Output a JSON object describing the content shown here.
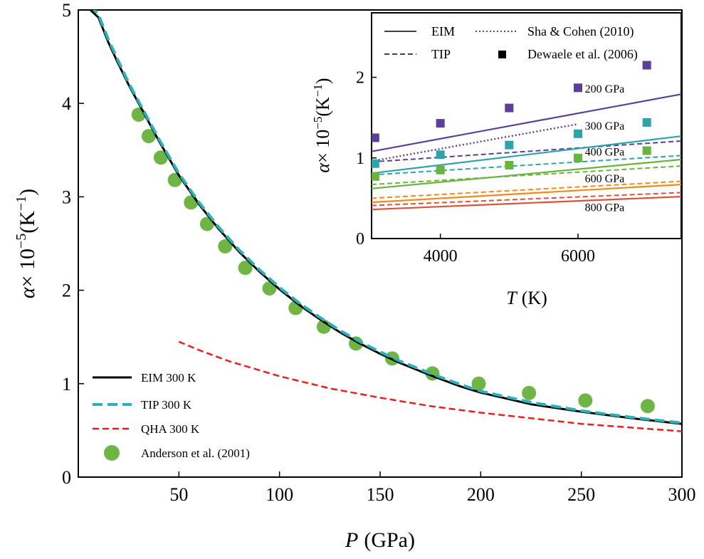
{
  "chart_data": [
    {
      "id": "main",
      "type": "line",
      "xlabel_var": "P",
      "xlabel_unit": "(GPa)",
      "ylabel_var": "α",
      "ylabel_rest": "× 10",
      "ylabel_exp": "−5",
      "ylabel_unit": "(K",
      "ylabel_unit_exp": "−1",
      "ylabel_unit_close": ")",
      "xlim": [
        0,
        300
      ],
      "ylim": [
        0,
        5
      ],
      "x_ticks": [
        50,
        100,
        150,
        200,
        250,
        300
      ],
      "x_tick_labels": [
        "50",
        "100",
        "150",
        "200",
        "250",
        "300"
      ],
      "y_ticks": [
        0,
        1,
        2,
        3,
        4,
        5
      ],
      "y_tick_labels": [
        "0",
        "1",
        "2",
        "3",
        "4",
        "5"
      ],
      "legend_position": "lower-left",
      "series": [
        {
          "name": "EIM 300 K",
          "style": "solid",
          "color": "#000000",
          "x": [
            6,
            10,
            15,
            20,
            25,
            30,
            40,
            50,
            60,
            70,
            80,
            90,
            100,
            110,
            120,
            130,
            140,
            150,
            160,
            175,
            190,
            200,
            225,
            250,
            275,
            300
          ],
          "y": [
            5.0,
            4.92,
            4.65,
            4.42,
            4.2,
            4.0,
            3.6,
            3.23,
            2.92,
            2.65,
            2.41,
            2.2,
            2.01,
            1.84,
            1.69,
            1.55,
            1.43,
            1.32,
            1.22,
            1.09,
            0.97,
            0.905,
            0.78,
            0.7,
            0.63,
            0.57
          ]
        },
        {
          "name": "TIP 300 K",
          "style": "dashed",
          "color": "#2bb2b8",
          "x": [
            6,
            10,
            15,
            20,
            25,
            30,
            40,
            50,
            60,
            70,
            80,
            90,
            100,
            110,
            120,
            130,
            140,
            150,
            160,
            175,
            190,
            200,
            225,
            250,
            275,
            300
          ],
          "y": [
            5.05,
            4.95,
            4.68,
            4.45,
            4.22,
            4.02,
            3.62,
            3.25,
            2.94,
            2.67,
            2.43,
            2.22,
            2.03,
            1.86,
            1.71,
            1.57,
            1.45,
            1.34,
            1.24,
            1.11,
            0.99,
            0.92,
            0.8,
            0.71,
            0.64,
            0.58
          ]
        },
        {
          "name": "QHA 300 K",
          "style": "dashed-thin",
          "color": "#e8201c",
          "x": [
            50,
            60,
            75,
            100,
            125,
            150,
            175,
            200,
            225,
            250,
            275,
            300
          ],
          "y": [
            1.45,
            1.36,
            1.24,
            1.08,
            0.95,
            0.85,
            0.76,
            0.69,
            0.63,
            0.57,
            0.53,
            0.49
          ]
        },
        {
          "name": "Anderson et al. (2001)",
          "style": "markers-circle",
          "color": "#6eb544",
          "x": [
            30,
            35,
            41,
            48,
            56,
            64,
            73,
            83,
            95,
            108,
            122,
            138,
            156,
            176,
            199,
            224,
            252,
            283
          ],
          "y": [
            3.88,
            3.65,
            3.42,
            3.18,
            2.94,
            2.71,
            2.47,
            2.24,
            2.02,
            1.81,
            1.61,
            1.43,
            1.27,
            1.11,
            1.0,
            0.9,
            0.82,
            0.76
          ]
        }
      ]
    },
    {
      "id": "inset",
      "type": "line",
      "xlabel_var": "T",
      "xlabel_unit": "(K)",
      "ylabel_var": "α",
      "ylabel_rest": "× 10",
      "ylabel_exp": "−5",
      "ylabel_unit": "(K",
      "ylabel_unit_exp": "−1",
      "ylabel_unit_close": ")",
      "xlim": [
        3000,
        7500
      ],
      "ylim": [
        0,
        2.8
      ],
      "x_ticks": [
        4000,
        6000
      ],
      "x_tick_labels": [
        "4000",
        "6000"
      ],
      "y_ticks": [
        0,
        1,
        2
      ],
      "y_tick_labels": [
        "0",
        "1",
        "2"
      ],
      "legend_position": "top",
      "legend": [
        {
          "name": "EIM",
          "style": "solid"
        },
        {
          "name": "TIP",
          "style": "dashed"
        },
        {
          "name": "Sha & Cohen (2010)",
          "style": "dotted"
        },
        {
          "name": "Dewaele et al. (2006)",
          "style": "square"
        }
      ],
      "pressure_groups": [
        {
          "label": "200 GPa",
          "color": "#5b3f98",
          "eim": {
            "x": [
              3000,
              7500
            ],
            "y": [
              1.08,
              1.79
            ]
          },
          "tip": {
            "x": [
              3000,
              7500
            ],
            "y": [
              0.95,
              1.21
            ]
          },
          "sha_cohen": {
            "x": [
              3000,
              6000
            ],
            "y": [
              0.96,
              1.42
            ]
          },
          "dewaele": {
            "x": [
              3050,
              4000,
              5000,
              6000,
              7000
            ],
            "y": [
              1.25,
              1.43,
              1.62,
              1.87,
              2.15
            ]
          }
        },
        {
          "label": "300 GPa",
          "color": "#2ba5a8",
          "eim": {
            "x": [
              3000,
              7500
            ],
            "y": [
              0.81,
              1.27
            ]
          },
          "tip": {
            "x": [
              3000,
              7500
            ],
            "y": [
              0.79,
              1.03
            ]
          },
          "dewaele": {
            "x": [
              3050,
              4000,
              5000,
              6000,
              7000
            ],
            "y": [
              0.93,
              1.04,
              1.16,
              1.3,
              1.44
            ]
          }
        },
        {
          "label": "400 GPa",
          "color": "#6ab43e",
          "eim": {
            "x": [
              3000,
              7500
            ],
            "y": [
              0.62,
              0.98
            ]
          },
          "tip": {
            "x": [
              3000,
              7500
            ],
            "y": [
              0.67,
              0.9
            ]
          },
          "dewaele": {
            "x": [
              3050,
              4000,
              5000,
              6000,
              7000
            ],
            "y": [
              0.77,
              0.85,
              0.91,
              1.0,
              1.09
            ]
          }
        },
        {
          "label": "600 GPa",
          "color": "#f08a1c",
          "eim": {
            "x": [
              3000,
              7500
            ],
            "y": [
              0.45,
              0.67
            ]
          },
          "tip": {
            "x": [
              3000,
              7500
            ],
            "y": [
              0.5,
              0.71
            ]
          }
        },
        {
          "label": "800 GPa",
          "color": "#d9533a",
          "eim": {
            "x": [
              3000,
              7500
            ],
            "y": [
              0.36,
              0.52
            ]
          },
          "tip": {
            "x": [
              3000,
              7500
            ],
            "y": [
              0.41,
              0.57
            ]
          }
        }
      ]
    }
  ]
}
